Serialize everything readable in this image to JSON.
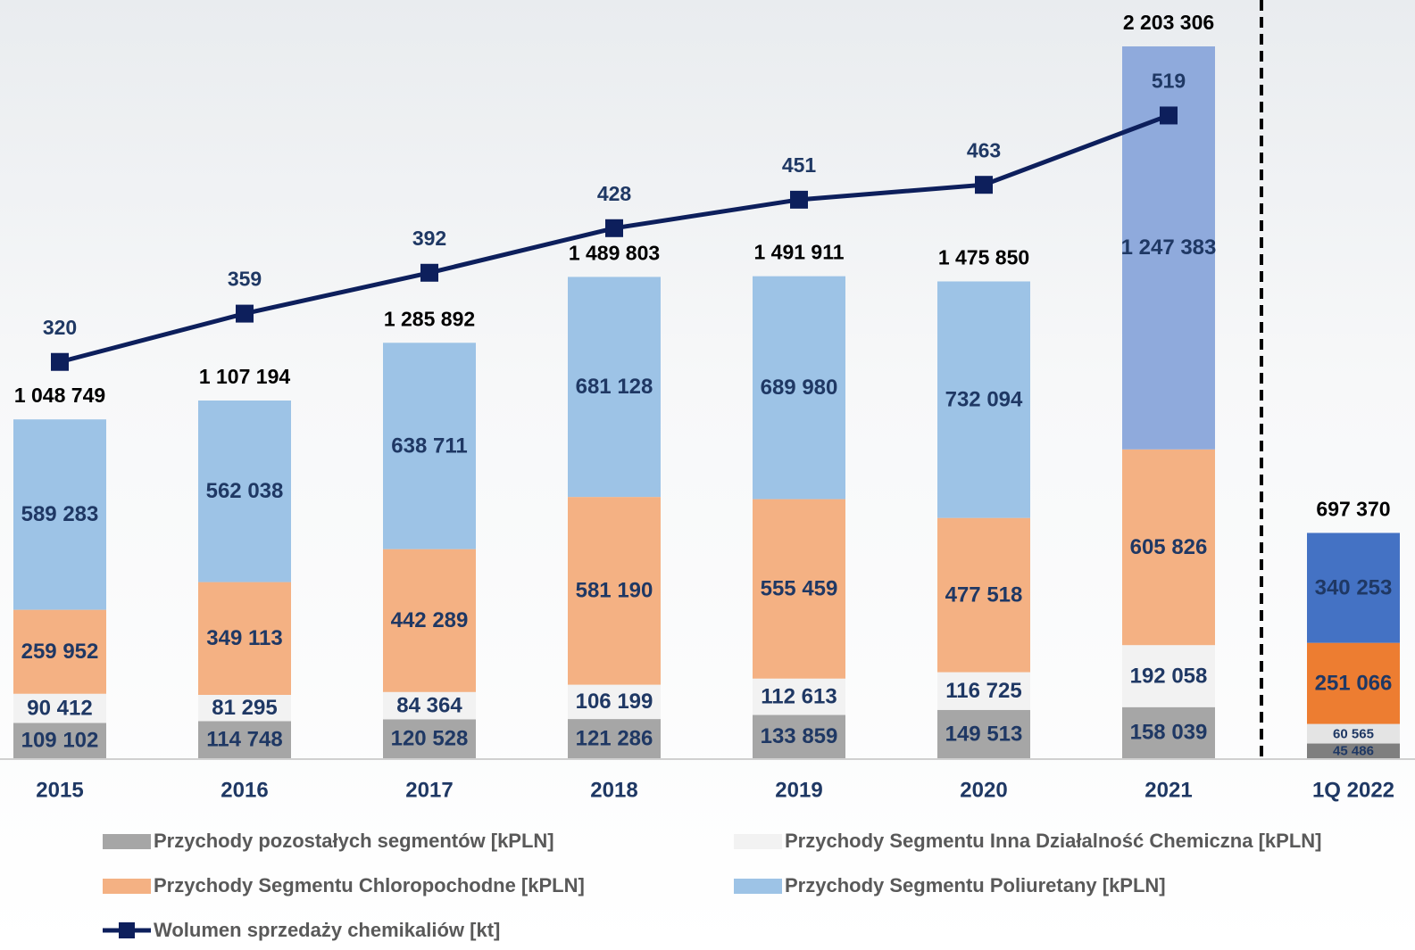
{
  "chart_data": {
    "type": "bar-line",
    "categories": [
      "2015",
      "2016",
      "2017",
      "2018",
      "2019",
      "2020",
      "2021",
      "1Q 2022"
    ],
    "ylim": [
      0,
      2300000
    ],
    "y2lim": [
      0,
      600
    ],
    "series": [
      {
        "name": "Przychody pozostałych segmentów [kPLN]",
        "color": "#a6a6a6",
        "colors": [
          "#a6a6a6",
          "#a6a6a6",
          "#a6a6a6",
          "#a6a6a6",
          "#a6a6a6",
          "#a6a6a6",
          "#a6a6a6",
          "#7f7f7f"
        ],
        "values": [
          109102,
          114748,
          120528,
          121286,
          133859,
          149513,
          158039,
          45486
        ],
        "value_labels": [
          "109 102",
          "114 748",
          "120 528",
          "121 286",
          "133 859",
          "149 513",
          "158 039",
          "45 486"
        ]
      },
      {
        "name": "Przychody Segmentu Inna Działalność Chemiczna [kPLN]",
        "color": "#f2f2f2",
        "colors": [
          "#f2f2f2",
          "#f2f2f2",
          "#f2f2f2",
          "#f2f2f2",
          "#f2f2f2",
          "#f2f2f2",
          "#f2f2f2",
          "#e4e4e4"
        ],
        "values": [
          90412,
          81295,
          84364,
          106199,
          112613,
          116725,
          192058,
          60565
        ],
        "value_labels": [
          "90 412",
          "81 295",
          "84 364",
          "106 199",
          "112 613",
          "116 725",
          "192 058",
          "60 565"
        ]
      },
      {
        "name": "Przychody Segmentu Chloropochodne [kPLN]",
        "color": "#f4b183",
        "colors": [
          "#f4b183",
          "#f4b183",
          "#f4b183",
          "#f4b183",
          "#f4b183",
          "#f4b183",
          "#f4b183",
          "#ed7d31"
        ],
        "values": [
          259952,
          349113,
          442289,
          581190,
          555459,
          477518,
          605826,
          251066
        ],
        "value_labels": [
          "259 952",
          "349 113",
          "442 289",
          "581 190",
          "555 459",
          "477 518",
          "605 826",
          "251 066"
        ]
      },
      {
        "name": "Przychody Segmentu Poliuretany [kPLN]",
        "color": "#9dc3e6",
        "colors": [
          "#9dc3e6",
          "#9dc3e6",
          "#9dc3e6",
          "#9dc3e6",
          "#9dc3e6",
          "#9dc3e6",
          "#8faadc",
          "#4472c4"
        ],
        "values": [
          589283,
          562038,
          638711,
          681128,
          689980,
          732094,
          1247383,
          340253
        ],
        "value_labels": [
          "589 283",
          "562 038",
          "638 711",
          "681 128",
          "689 980",
          "732 094",
          "1 247 383",
          "340 253"
        ]
      },
      {
        "name": "Wolumen sprzedaży chemikaliów [kt]",
        "type": "line",
        "axis": "y2",
        "color": "#0d1f5c",
        "values": [
          320,
          359,
          392,
          428,
          451,
          463,
          519,
          null
        ]
      }
    ],
    "totals": [
      1048749,
      1107194,
      1285892,
      1489803,
      1491911,
      1475850,
      2203306,
      697370
    ],
    "total_labels": [
      "1 048 749",
      "1 107 194",
      "1 285 892",
      "1 489 803",
      "1 491 911",
      "1 475 850",
      "2 203 306",
      "697 370"
    ]
  }
}
